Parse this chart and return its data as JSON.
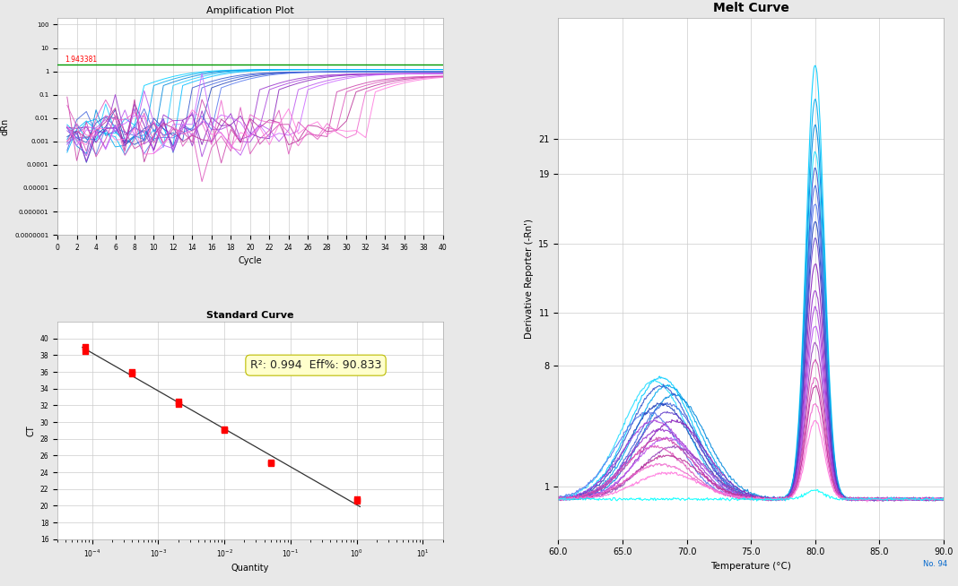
{
  "amp_title": "Amplification Plot",
  "amp_xlabel": "Cycle",
  "amp_ylabel": "dRn",
  "amp_threshold": 1.943381,
  "amp_threshold_label": "1.943381",
  "amp_xlim": [
    0,
    40
  ],
  "amp_cycles": 40,
  "std_title": "Standard Curve",
  "std_xlabel": "Quantity",
  "std_ylabel": "CT",
  "std_r2": "0.994",
  "std_eff": "90.833",
  "std_ct_points": [
    [
      8e-05,
      39.0
    ],
    [
      8e-05,
      38.5
    ],
    [
      0.0004,
      36.0
    ],
    [
      0.0004,
      35.8
    ],
    [
      0.002,
      32.5
    ],
    [
      0.002,
      32.2
    ],
    [
      0.01,
      29.2
    ],
    [
      0.01,
      29.0
    ],
    [
      0.05,
      25.2
    ],
    [
      0.05,
      25.1
    ],
    [
      1.0,
      20.8
    ],
    [
      1.0,
      20.6
    ]
  ],
  "melt_title": "Melt Curve",
  "melt_xlabel": "Temperature (°C)",
  "melt_ylabel": "Derivative Reporter (-Rn')",
  "melt_xlim": [
    60,
    90
  ],
  "melt_ylim": [
    -2,
    28
  ],
  "background_color": "#e8e8e8",
  "plot_bg_color": "#ffffff",
  "grid_color": "#cccccc",
  "threshold_color": "#009900",
  "amp_curve_params": [
    [
      12,
      "#00ccff",
      1.5
    ],
    [
      13,
      "#00aaee",
      1.5
    ],
    [
      14,
      "#0088dd",
      1.5
    ],
    [
      15,
      "#22ccff",
      1.5
    ],
    [
      16,
      "#00bbff",
      1.5
    ],
    [
      17,
      "#3355cc",
      1.2
    ],
    [
      18,
      "#4466dd",
      1.2
    ],
    [
      19,
      "#2244bb",
      1.2
    ],
    [
      20,
      "#5577ee",
      1.2
    ],
    [
      24,
      "#9933cc",
      1.0
    ],
    [
      25,
      "#aa44dd",
      1.0
    ],
    [
      26,
      "#8822bb",
      1.0
    ],
    [
      28,
      "#bb55ee",
      1.0
    ],
    [
      29,
      "#cc66ff",
      1.0
    ],
    [
      32,
      "#cc44aa",
      0.8
    ],
    [
      33,
      "#dd55bb",
      0.8
    ],
    [
      34,
      "#bb3399",
      0.8
    ],
    [
      35,
      "#ee66cc",
      0.8
    ],
    [
      36,
      "#ff77dd",
      0.8
    ]
  ],
  "melt_curve_params": [
    [
      80.0,
      25.0,
      true,
      68.0,
      7.0,
      "#00ccff"
    ],
    [
      80.0,
      23.0,
      true,
      68.5,
      6.5,
      "#00aaee"
    ],
    [
      80.0,
      21.5,
      true,
      69.0,
      6.0,
      "#0088dd"
    ],
    [
      80.0,
      20.0,
      true,
      67.5,
      6.8,
      "#22ddff"
    ],
    [
      80.0,
      19.0,
      true,
      68.0,
      6.5,
      "#3355cc"
    ],
    [
      80.0,
      18.0,
      true,
      68.5,
      5.5,
      "#4466dd"
    ],
    [
      80.0,
      17.0,
      true,
      67.0,
      5.0,
      "#5577ee"
    ],
    [
      80.0,
      16.0,
      true,
      68.0,
      5.5,
      "#2244bb"
    ],
    [
      80.0,
      15.0,
      true,
      68.5,
      5.0,
      "#6644cc"
    ],
    [
      80.0,
      13.5,
      true,
      69.0,
      4.5,
      "#8822bb"
    ],
    [
      80.0,
      12.0,
      true,
      68.0,
      4.0,
      "#9933cc"
    ],
    [
      80.0,
      11.0,
      true,
      67.5,
      4.5,
      "#aa44dd"
    ],
    [
      80.0,
      10.0,
      true,
      68.5,
      3.5,
      "#bb55ee"
    ],
    [
      80.0,
      9.0,
      true,
      69.0,
      3.0,
      "#9944bb"
    ],
    [
      80.0,
      8.0,
      true,
      68.0,
      3.5,
      "#cc44aa"
    ],
    [
      80.0,
      7.0,
      true,
      67.5,
      3.0,
      "#dd55bb"
    ],
    [
      80.0,
      6.5,
      true,
      68.5,
      2.5,
      "#bb3399"
    ],
    [
      80.0,
      5.5,
      true,
      68.0,
      2.0,
      "#ee66cc"
    ],
    [
      80.0,
      4.5,
      true,
      68.5,
      1.5,
      "#ff77dd"
    ],
    [
      80.0,
      0.5,
      false,
      68.0,
      0.0,
      "#00ffff"
    ]
  ]
}
